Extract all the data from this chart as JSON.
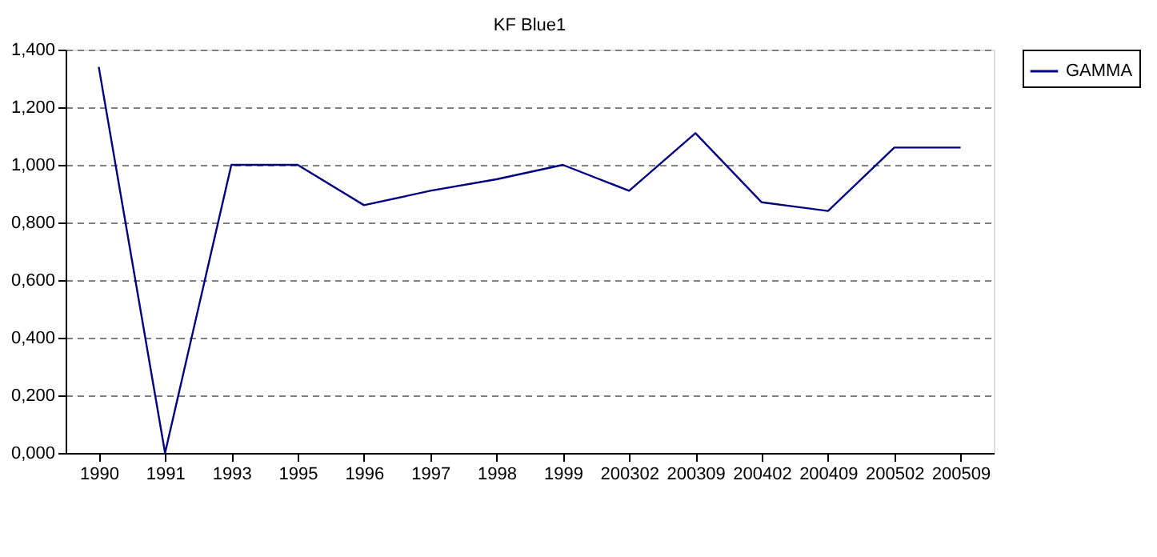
{
  "chart_data": {
    "type": "line",
    "title": "KF  Blue1",
    "categories": [
      "1990",
      "1991",
      "1993",
      "1995",
      "1996",
      "1997",
      "1998",
      "1999",
      "200302",
      "200309",
      "200402",
      "200409",
      "200502",
      "200509"
    ],
    "series": [
      {
        "name": "GAMMA",
        "color": "#000080",
        "values": [
          1.34,
          0,
          1.0,
          1.0,
          0.86,
          0.91,
          0.95,
          1.0,
          0.91,
          1.11,
          0.87,
          0.84,
          1.06,
          1.06
        ]
      }
    ],
    "ylim": [
      0,
      1.4
    ],
    "yticks": [
      {
        "value": 0,
        "label": "0,000"
      },
      {
        "value": 0.2,
        "label": "0,200"
      },
      {
        "value": 0.4,
        "label": "0,400"
      },
      {
        "value": 0.6,
        "label": "0,600"
      },
      {
        "value": 0.8,
        "label": "0,800"
      },
      {
        "value": 1.0,
        "label": "1,000"
      },
      {
        "value": 1.2,
        "label": "1,200"
      },
      {
        "value": 1.4,
        "label": "1,400"
      }
    ],
    "grid": "y",
    "legend": "right",
    "marker": "none",
    "line_style": "solid"
  }
}
